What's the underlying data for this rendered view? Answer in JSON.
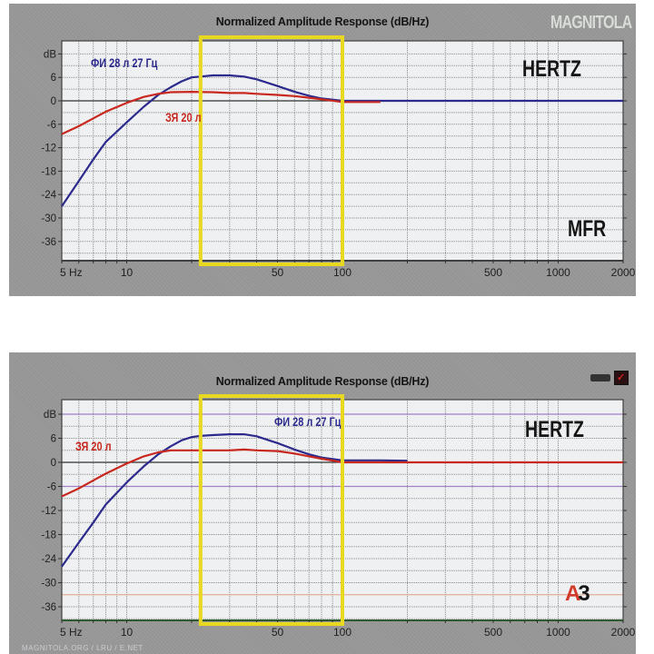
{
  "chart_data": [
    {
      "type": "line",
      "title": "Normalized Amplitude Response (dB/Hz)",
      "xlabel": "Hz",
      "ylabel": "dB",
      "xscale": "log",
      "xlim": [
        5,
        2000
      ],
      "ylim": [
        -42,
        12
      ],
      "x_tick_labels": [
        "5 Hz",
        "10",
        "50",
        "100",
        "500",
        "1000",
        "2000"
      ],
      "x_ticks": [
        5,
        10,
        50,
        100,
        500,
        1000,
        2000
      ],
      "y_tick_labels": [
        "dB",
        "6",
        "0",
        "-6",
        "-12",
        "-18",
        "-24",
        "-30",
        "-36"
      ],
      "y_ticks": [
        12,
        6,
        0,
        -6,
        -12,
        -18,
        -24,
        -30,
        -36
      ],
      "grid": true,
      "highlight_box": {
        "x_from": 22,
        "x_to": 100,
        "color": "#e8d820"
      },
      "annotations": [
        "HERTZ",
        "MFR",
        "MAGNITOLA"
      ],
      "series": [
        {
          "name": "ФИ 28 л 27 Гц",
          "color": "#2c2a8c",
          "x": [
            5,
            6,
            7,
            8,
            10,
            12,
            14,
            16,
            18,
            20,
            22,
            25,
            30,
            35,
            40,
            50,
            60,
            70,
            80,
            100,
            150,
            2000
          ],
          "y": [
            -27,
            -20.5,
            -15,
            -10.5,
            -5.5,
            -1.5,
            1.5,
            3.5,
            5,
            6,
            6.2,
            6.5,
            6.5,
            6.2,
            5.5,
            3.8,
            2.3,
            1.3,
            0.6,
            0,
            0,
            0
          ]
        },
        {
          "name": "ЗЯ 20 л",
          "color": "#c8281e",
          "x": [
            5,
            6,
            7,
            8,
            10,
            12,
            14,
            16,
            20,
            25,
            30,
            35,
            40,
            50,
            60,
            70,
            80,
            100,
            120,
            150
          ],
          "y": [
            -8.5,
            -6.5,
            -4.5,
            -2.8,
            -0.5,
            1,
            1.8,
            2.2,
            2.3,
            2.2,
            2,
            2,
            1.8,
            1.5,
            1.2,
            0.8,
            0.4,
            -0.3,
            -0.3,
            -0.3
          ]
        }
      ],
      "labels": {
        "blue": "ФИ 28 л 27 Гц",
        "red": "ЗЯ 20 л",
        "brand_right": "HERTZ",
        "brand_bottom": "MFR",
        "logo": "MAGNITOLA"
      }
    },
    {
      "type": "line",
      "title": "Normalized Amplitude Response (dB/Hz)",
      "xlabel": "Hz",
      "ylabel": "dB",
      "xscale": "log",
      "xlim": [
        5,
        2000
      ],
      "ylim": [
        -42,
        12
      ],
      "x_tick_labels": [
        "5 Hz",
        "10",
        "50",
        "100",
        "500",
        "1000",
        "2000"
      ],
      "x_ticks": [
        5,
        10,
        50,
        100,
        500,
        1000,
        2000
      ],
      "y_tick_labels": [
        "dB",
        "6",
        "0",
        "-6",
        "-12",
        "-18",
        "-24",
        "-30",
        "-36"
      ],
      "y_ticks": [
        12,
        6,
        0,
        -6,
        -12,
        -18,
        -24,
        -30,
        -36
      ],
      "grid": true,
      "highlight_box": {
        "x_from": 22,
        "x_to": 100,
        "color": "#e8d820"
      },
      "annotations": [
        "HERTZ",
        "A3"
      ],
      "series": [
        {
          "name": "ФИ 28 л 27 Гц",
          "color": "#2c2a8c",
          "x": [
            5,
            6,
            7,
            8,
            10,
            12,
            14,
            16,
            18,
            20,
            22,
            25,
            30,
            35,
            40,
            50,
            60,
            70,
            80,
            100,
            150,
            200
          ],
          "y": [
            -26,
            -20,
            -15,
            -10.5,
            -5,
            -1,
            2,
            4,
            5.5,
            6.3,
            6.6,
            6.8,
            7,
            7,
            6.5,
            4.8,
            3.2,
            2,
            1.2,
            0.5,
            0.5,
            0.4
          ]
        },
        {
          "name": "ЗЯ 20 л",
          "color": "#c8281e",
          "x": [
            5,
            6,
            7,
            8,
            10,
            12,
            14,
            16,
            20,
            25,
            30,
            35,
            40,
            50,
            60,
            70,
            80,
            100,
            150,
            2000
          ],
          "y": [
            -8.5,
            -6.5,
            -4.5,
            -2.8,
            -0.3,
            1.5,
            2.5,
            3,
            3,
            3,
            3,
            3.2,
            3,
            2.8,
            2.2,
            1.5,
            0.9,
            0,
            0,
            0
          ]
        }
      ],
      "labels": {
        "blue": "ФИ 28 л 27 Гц",
        "red": "ЗЯ 20 л",
        "brand_right": "HERTZ",
        "brand_bottom": "A3"
      },
      "watermark": "MAGNITOLA.ORG / LRU / E.NET"
    }
  ]
}
